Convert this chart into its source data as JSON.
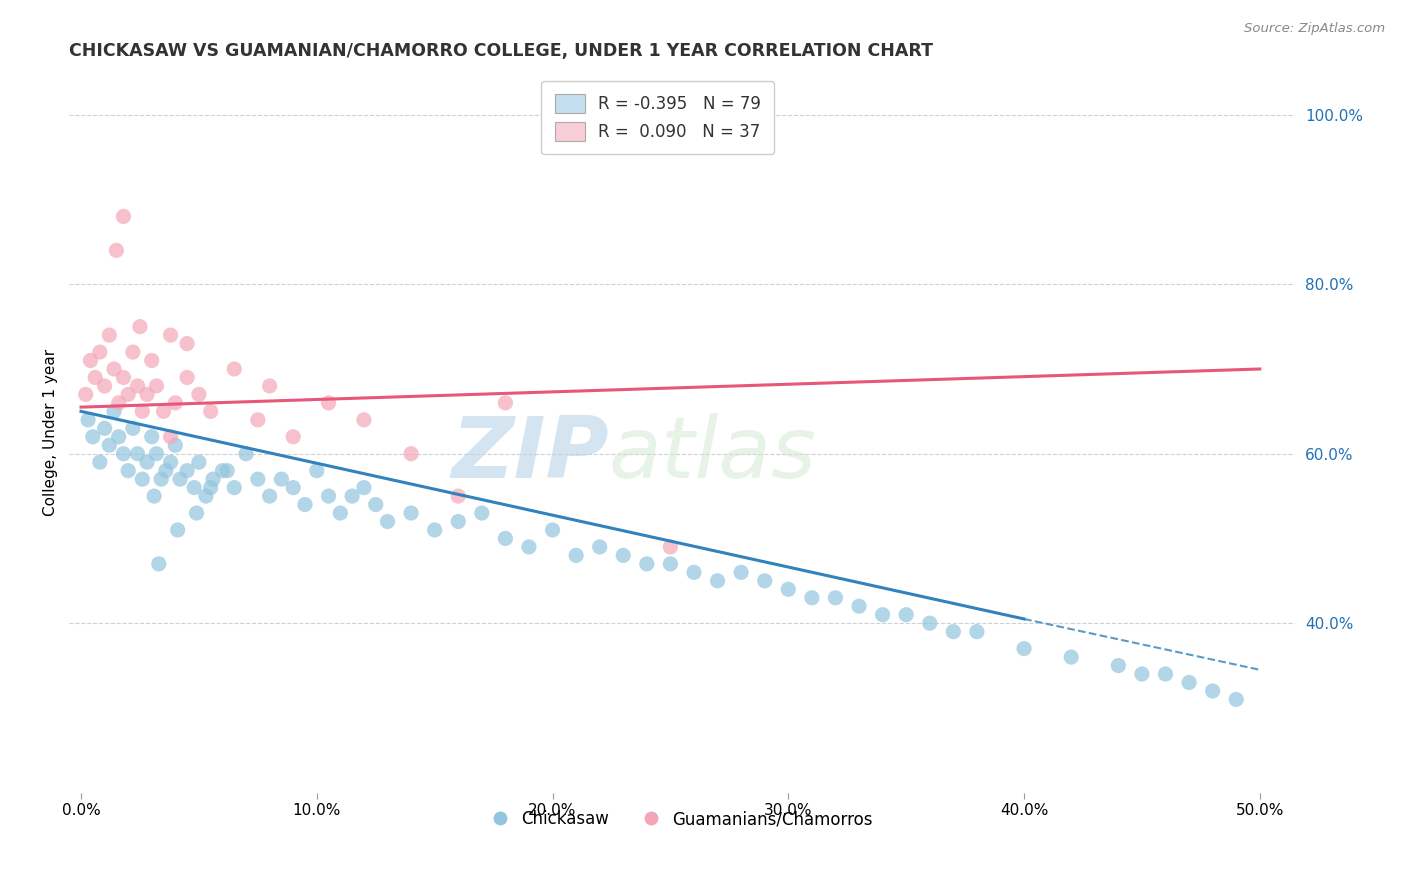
{
  "title": "CHICKASAW VS GUAMANIAN/CHAMORRO COLLEGE, UNDER 1 YEAR CORRELATION CHART",
  "source_text": "Source: ZipAtlas.com",
  "ylabel": "College, Under 1 year",
  "xlabel_vals": [
    0.0,
    10.0,
    20.0,
    30.0,
    40.0,
    50.0
  ],
  "ylabel_right_vals": [
    40.0,
    60.0,
    80.0,
    100.0
  ],
  "legend_label1": "R = -0.395   N = 79",
  "legend_label2": "R =  0.090   N = 37",
  "legend_label_chickasaw": "Chickasaw",
  "legend_label_guamanian": "Guamanians/Chamorros",
  "watermark_zip": "ZIP",
  "watermark_atlas": "atlas",
  "blue_color": "#92c5de",
  "blue_light": "#c6dff0",
  "pink_color": "#f4a6b8",
  "pink_light": "#f9cdd8",
  "blue_line_color": "#3182bd",
  "pink_line_color": "#e8567a",
  "blue_dots_x": [
    0.3,
    0.5,
    0.8,
    1.0,
    1.2,
    1.4,
    1.6,
    1.8,
    2.0,
    2.2,
    2.4,
    2.6,
    2.8,
    3.0,
    3.2,
    3.4,
    3.6,
    3.8,
    4.0,
    4.2,
    4.5,
    4.8,
    5.0,
    5.3,
    5.6,
    6.0,
    6.5,
    7.0,
    7.5,
    8.0,
    8.5,
    9.0,
    9.5,
    10.0,
    10.5,
    11.0,
    11.5,
    12.0,
    12.5,
    13.0,
    14.0,
    15.0,
    16.0,
    17.0,
    18.0,
    19.0,
    20.0,
    21.0,
    22.0,
    23.0,
    24.0,
    25.0,
    26.0,
    27.0,
    28.0,
    29.0,
    30.0,
    31.0,
    32.0,
    33.0,
    34.0,
    35.0,
    36.0,
    37.0,
    38.0,
    40.0,
    42.0,
    44.0,
    45.0,
    46.0,
    47.0,
    48.0,
    49.0,
    3.1,
    3.3,
    4.1,
    4.9,
    5.5,
    6.2
  ],
  "blue_dots_y": [
    64.0,
    62.0,
    59.0,
    63.0,
    61.0,
    65.0,
    62.0,
    60.0,
    58.0,
    63.0,
    60.0,
    57.0,
    59.0,
    62.0,
    60.0,
    57.0,
    58.0,
    59.0,
    61.0,
    57.0,
    58.0,
    56.0,
    59.0,
    55.0,
    57.0,
    58.0,
    56.0,
    60.0,
    57.0,
    55.0,
    57.0,
    56.0,
    54.0,
    58.0,
    55.0,
    53.0,
    55.0,
    56.0,
    54.0,
    52.0,
    53.0,
    51.0,
    52.0,
    53.0,
    50.0,
    49.0,
    51.0,
    48.0,
    49.0,
    48.0,
    47.0,
    47.0,
    46.0,
    45.0,
    46.0,
    45.0,
    44.0,
    43.0,
    43.0,
    42.0,
    41.0,
    41.0,
    40.0,
    39.0,
    39.0,
    37.0,
    36.0,
    35.0,
    34.0,
    34.0,
    33.0,
    32.0,
    31.0,
    55.0,
    47.0,
    51.0,
    53.0,
    56.0,
    58.0
  ],
  "pink_dots_x": [
    0.2,
    0.4,
    0.6,
    0.8,
    1.0,
    1.2,
    1.4,
    1.6,
    1.8,
    2.0,
    2.2,
    2.4,
    2.6,
    2.8,
    3.0,
    3.2,
    3.5,
    3.8,
    4.0,
    4.5,
    5.0,
    5.5,
    6.5,
    7.5,
    8.0,
    9.0,
    10.5,
    12.0,
    14.0,
    16.0,
    18.0,
    25.0,
    1.5,
    1.8,
    2.5,
    3.8,
    4.5
  ],
  "pink_dots_y": [
    67.0,
    71.0,
    69.0,
    72.0,
    68.0,
    74.0,
    70.0,
    66.0,
    69.0,
    67.0,
    72.0,
    68.0,
    65.0,
    67.0,
    71.0,
    68.0,
    65.0,
    62.0,
    66.0,
    69.0,
    67.0,
    65.0,
    70.0,
    64.0,
    68.0,
    62.0,
    66.0,
    64.0,
    60.0,
    55.0,
    66.0,
    49.0,
    84.0,
    88.0,
    75.0,
    74.0,
    73.0
  ],
  "blue_line_x0": 0.0,
  "blue_line_x1": 40.0,
  "blue_line_x2": 50.0,
  "blue_line_y0": 65.0,
  "blue_line_y1": 40.5,
  "blue_line_y2": 34.5,
  "pink_line_x0": 0.0,
  "pink_line_x1": 50.0,
  "pink_line_y0": 65.5,
  "pink_line_y1": 70.0,
  "xmin": -0.5,
  "xmax": 51.5,
  "ymin": 20.0,
  "ymax": 105.0,
  "title_fontsize": 12.5,
  "background_color": "#ffffff",
  "grid_color": "#d0d0d0"
}
